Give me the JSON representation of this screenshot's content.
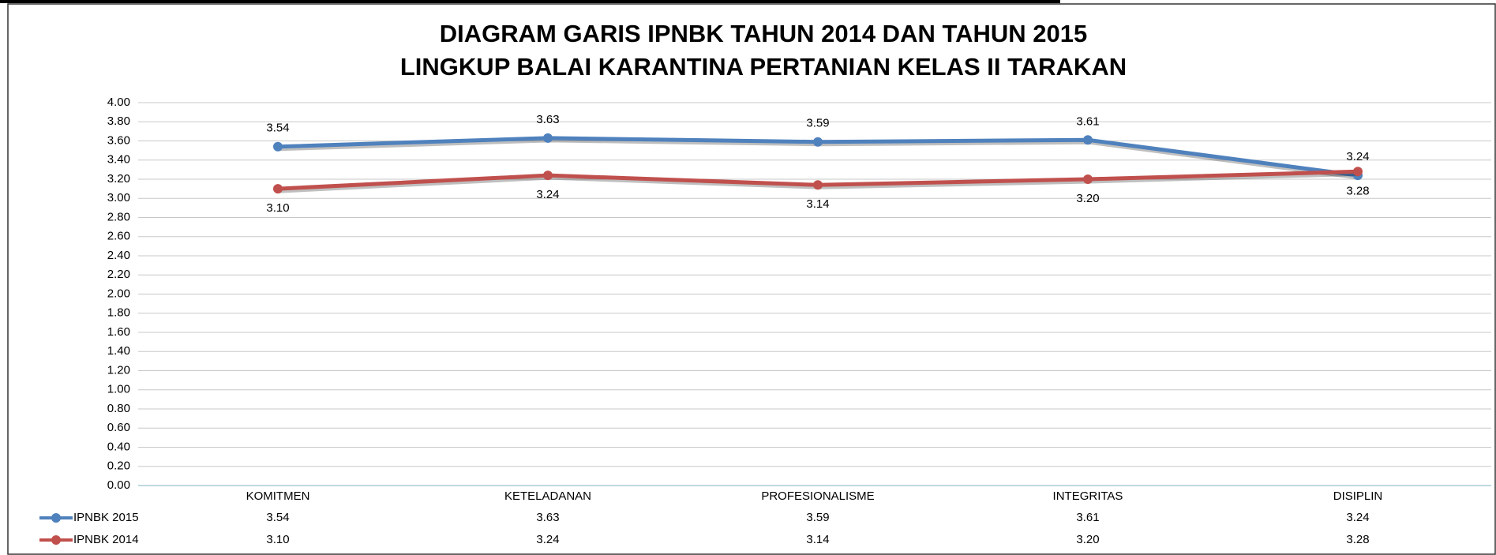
{
  "chart_data": {
    "type": "line",
    "title": "DIAGRAM GARIS IPNBK TAHUN 2014 DAN TAHUN 2015",
    "subtitle": "LINGKUP BALAI KARANTINA PERTANIAN KELAS II TARAKAN",
    "categories": [
      "KOMITMEN",
      "KETELADANAN",
      "PROFESIONALISME",
      "INTEGRITAS",
      "DISIPLIN"
    ],
    "series": [
      {
        "name": "IPNBK 2015",
        "color": "#4f81bd",
        "values": [
          3.54,
          3.63,
          3.59,
          3.61,
          3.24
        ],
        "value_labels": [
          "3.54",
          "3.63",
          "3.59",
          "3.61",
          "3.24"
        ]
      },
      {
        "name": "IPNBK 2014",
        "color": "#c0504d",
        "values": [
          3.1,
          3.24,
          3.14,
          3.2,
          3.28
        ],
        "value_labels": [
          "3.10",
          "3.24",
          "3.14",
          "3.20",
          "3.28"
        ]
      }
    ],
    "ylim": [
      0,
      4
    ],
    "yticks": [
      {
        "value": 0,
        "label": "0.00"
      },
      {
        "value": 0.2,
        "label": "0.20"
      },
      {
        "value": 0.4,
        "label": "0.40"
      },
      {
        "value": 0.6,
        "label": "0.60"
      },
      {
        "value": 0.8,
        "label": "0.80"
      },
      {
        "value": 1,
        "label": "1.00"
      },
      {
        "value": 1.2,
        "label": "1.20"
      },
      {
        "value": 1.4,
        "label": "1.40"
      },
      {
        "value": 1.6,
        "label": "1.60"
      },
      {
        "value": 1.8,
        "label": "1.80"
      },
      {
        "value": 2,
        "label": "2.00"
      },
      {
        "value": 2.2,
        "label": "2.20"
      },
      {
        "value": 2.4,
        "label": "2.40"
      },
      {
        "value": 2.6,
        "label": "2.60"
      },
      {
        "value": 2.8,
        "label": "2.80"
      },
      {
        "value": 3,
        "label": "3.00"
      },
      {
        "value": 3.2,
        "label": "3.20"
      },
      {
        "value": 3.4,
        "label": "3.40"
      },
      {
        "value": 3.6,
        "label": "3.60"
      },
      {
        "value": 3.8,
        "label": "3.80"
      },
      {
        "value": 4,
        "label": "4.00"
      }
    ],
    "grid": true
  }
}
